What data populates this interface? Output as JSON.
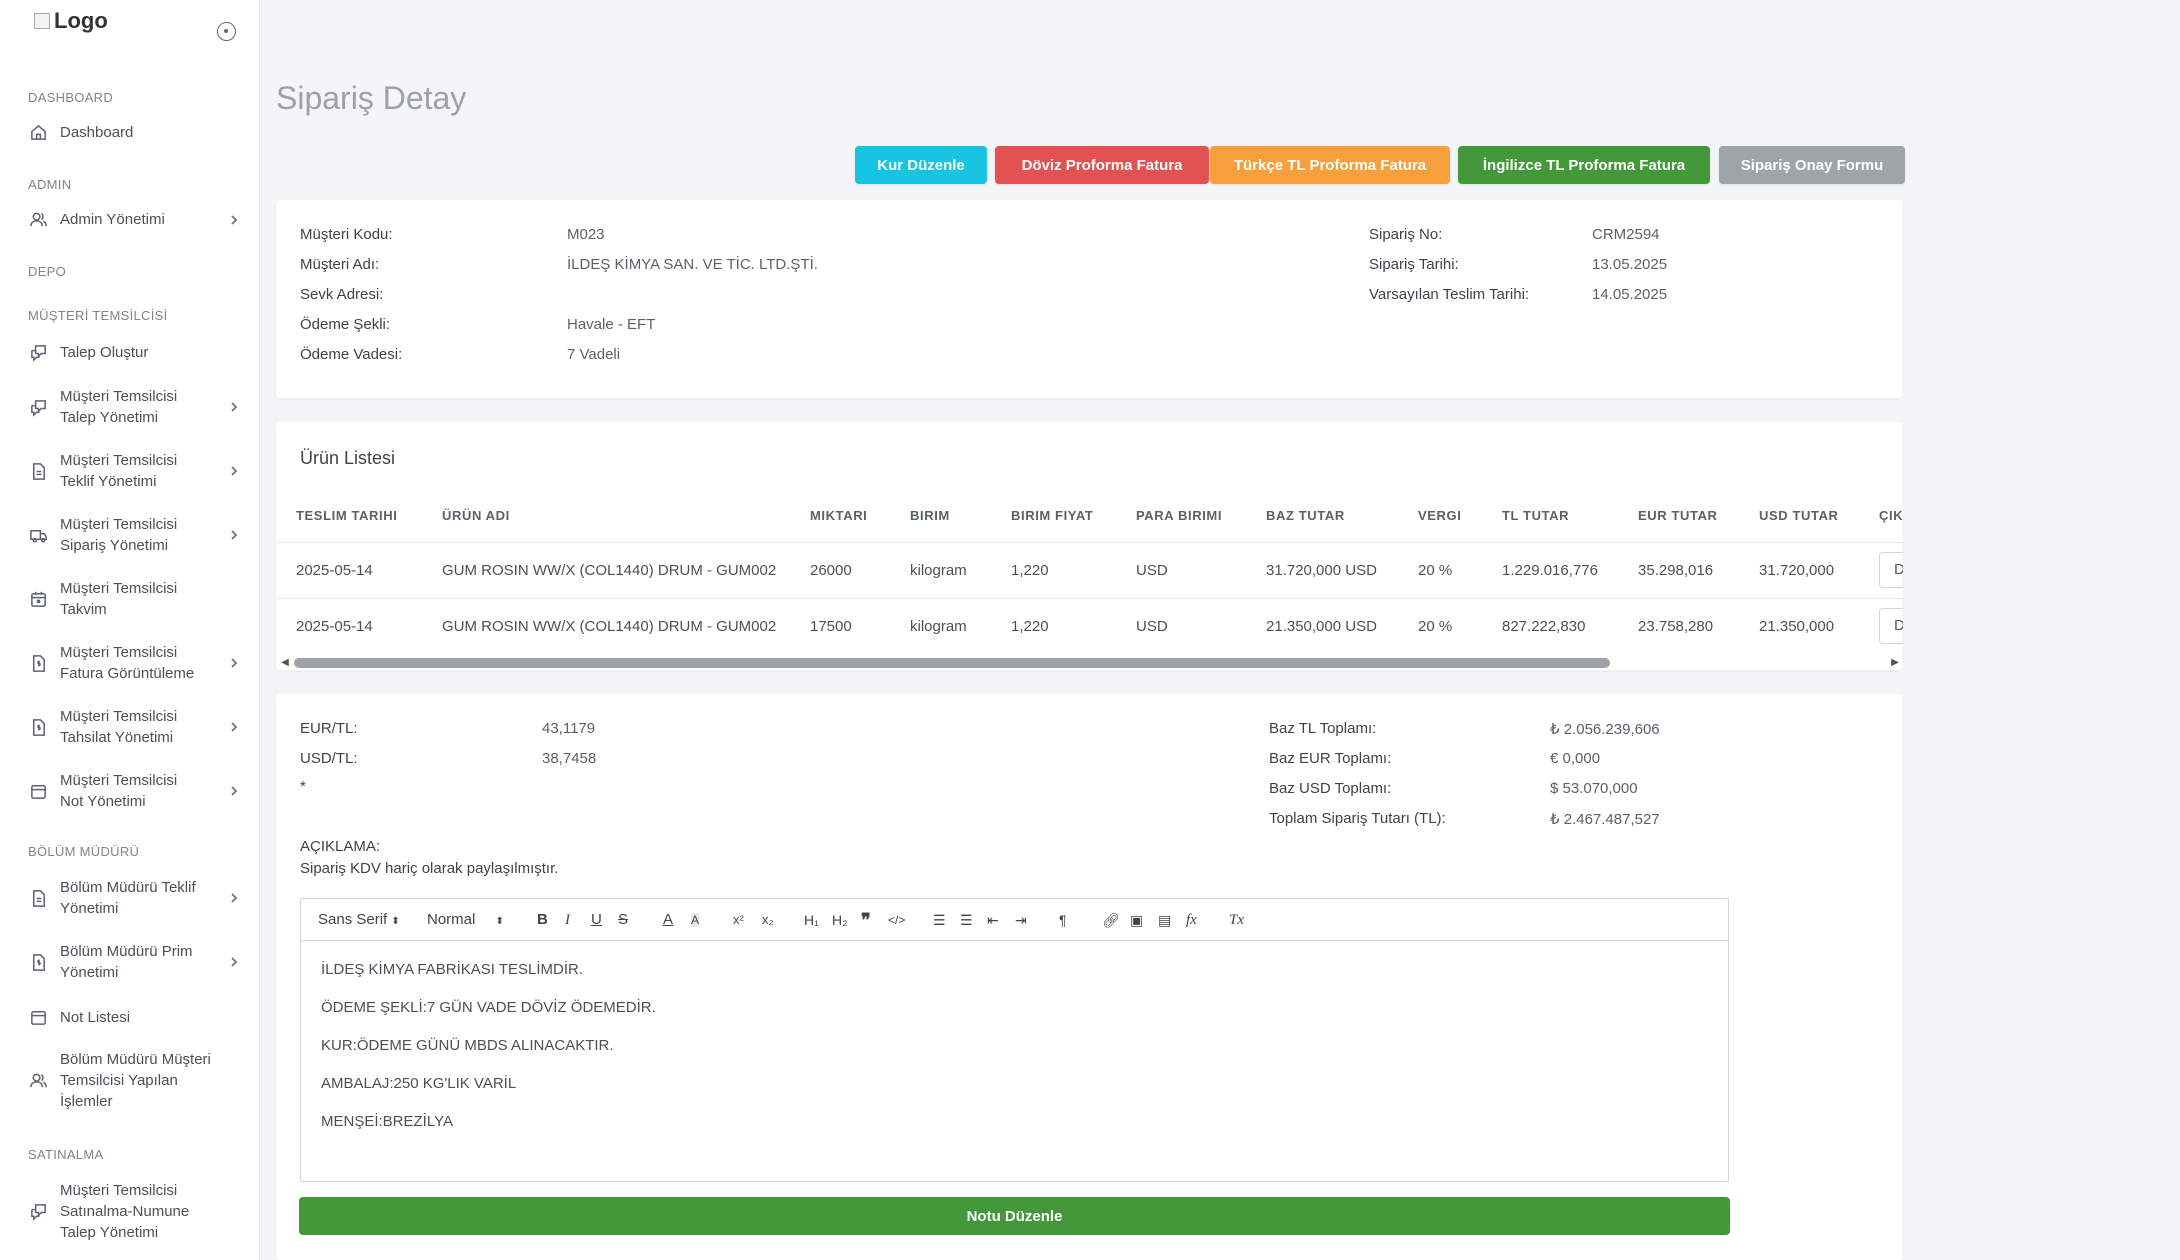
{
  "logo": {
    "alt_text": "Logo"
  },
  "sidebar": {
    "sections": {
      "dashboard": "DASHBOARD",
      "admin": "ADMIN",
      "depo": "DEPO",
      "musteri": "MÜŞTERİ TEMSİLCİSİ",
      "bolum": "BÖLÜM MÜDÜRÜ",
      "satinalma": "SATINALMA"
    },
    "items": {
      "dashboard": "Dashboard",
      "admin": "Admin Yönetimi",
      "talep_olustur": "Talep Oluştur",
      "mt_talep_1": "Müşteri Temsilcisi",
      "mt_talep_2": "Talep Yönetimi",
      "mt_teklif_1": "Müşteri Temsilcisi",
      "mt_teklif_2": "Teklif Yönetimi",
      "mt_siparis_1": "Müşteri Temsilcisi",
      "mt_siparis_2": "Sipariş Yönetimi",
      "mt_takvim_1": "Müşteri Temsilcisi",
      "mt_takvim_2": "Takvim",
      "mt_fatura_1": "Müşteri Temsilcisi",
      "mt_fatura_2": "Fatura Görüntüleme",
      "mt_tahsilat_1": "Müşteri Temsilcisi",
      "mt_tahsilat_2": "Tahsilat Yönetimi",
      "mt_not_1": "Müşteri Temsilcisi",
      "mt_not_2": "Not Yönetimi",
      "bm_teklif_1": "Bölüm Müdürü Teklif",
      "bm_teklif_2": "Yönetimi",
      "bm_prim_1": "Bölüm Müdürü Prim",
      "bm_prim_2": "Yönetimi",
      "not_listesi": "Not Listesi",
      "bm_islem_1": "Bölüm Müdürü Müşteri",
      "bm_islem_2": "Temsilcisi Yapılan",
      "bm_islem_3": "İşlemler",
      "sat_1": "Müşteri Temsilcisi",
      "sat_2": "Satınalma-Numune",
      "sat_3": "Talep Yönetimi"
    }
  },
  "page": {
    "title": "Sipariş Detay"
  },
  "actions": {
    "kur": "Kur Düzenle",
    "doviz": "Döviz Proforma Fatura",
    "turkce": "Türkçe TL Proforma Fatura",
    "ingilizce": "İngilizce TL Proforma Fatura",
    "onay": "Sipariş Onay Formu"
  },
  "colors": {
    "kur": "#17c5e2",
    "doviz": "#e35252",
    "turkce": "#f7a03b",
    "ingilizce": "#43983a",
    "onay": "#9fa4a9"
  },
  "order": {
    "musteri_kodu_label": "Müşteri Kodu:",
    "musteri_kodu": "M023",
    "musteri_adi_label": "Müşteri Adı:",
    "musteri_adi": "İLDEŞ KİMYA SAN. VE TİC. LTD.ŞTİ.",
    "sevk_label": "Sevk Adresi:",
    "odeme_sekli_label": "Ödeme Şekli:",
    "odeme_sekli": "Havale - EFT",
    "odeme_vadesi_label": "Ödeme Vadesi:",
    "odeme_vadesi": "7 Vadeli",
    "siparis_no_label": "Sipariş No:",
    "siparis_no": "CRM2594",
    "siparis_tarihi_label": "Sipariş Tarihi:",
    "siparis_tarihi": "13.05.2025",
    "teslim_label": "Varsayılan Teslim Tarihi:",
    "teslim": "14.05.2025"
  },
  "products": {
    "title": "Ürün Listesi",
    "headers": [
      "TESLIM TARIHI",
      "ÜRÜN ADI",
      "MIKTARI",
      "BIRIM",
      "BIRIM FIYAT",
      "PARA BIRIMI",
      "BAZ TUTAR",
      "VERGI",
      "TL TUTAR",
      "EUR TUTAR",
      "USD TUTAR",
      "ÇIK"
    ],
    "rows": [
      [
        "2025-05-14",
        "GUM ROSIN WW/X (COL1440) DRUM - GUM002",
        "26000",
        "kilogram",
        "1,220",
        "USD",
        "31.720,000 USD",
        "20 %",
        "1.229.016,776",
        "35.298,016",
        "31.720,000",
        "D"
      ],
      [
        "2025-05-14",
        "GUM ROSIN WW/X (COL1440) DRUM - GUM002",
        "17500",
        "kilogram",
        "1,220",
        "USD",
        "21.350,000 USD",
        "20 %",
        "827.222,830",
        "23.758,280",
        "21.350,000",
        "D"
      ]
    ]
  },
  "summary": {
    "eur_label": "EUR/TL:",
    "eur": "43,1179",
    "usd_label": "USD/TL:",
    "usd": "38,7458",
    "asterisk": "*",
    "baz_tl_label": "Baz TL Toplamı:",
    "baz_tl": "₺ 2.056.239,606",
    "baz_eur_label": "Baz EUR Toplamı:",
    "baz_eur": "€ 0,000",
    "baz_usd_label": "Baz USD Toplamı:",
    "baz_usd": "$ 53.070,000",
    "toplam_label": "Toplam Sipariş Tutarı (TL):",
    "toplam": "₺ 2.467.487,527",
    "aciklama_label": "AÇIKLAMA:",
    "aciklama": "Sipariş KDV hariç olarak paylaşılmıştır."
  },
  "editor": {
    "font": "Sans Serif",
    "size": "Normal",
    "lines": [
      "İLDEŞ KİMYA FABRİKASI TESLİMDİR.",
      "ÖDEME ŞEKLİ:7 GÜN VADE DÖVİZ ÖDEMEDİR.",
      "KUR:ÖDEME GÜNÜ MBDS ALINACAKTIR.",
      "AMBALAJ:250 KG'LIK VARİL",
      "MENŞEİ:BREZİLYA"
    ],
    "button": "Notu Düzenle"
  }
}
